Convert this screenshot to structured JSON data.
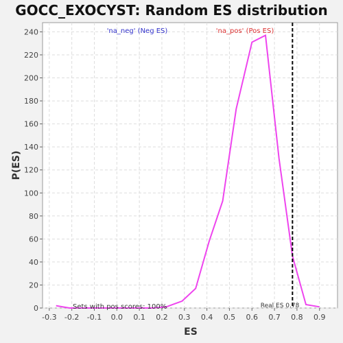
{
  "chart_data": {
    "type": "line",
    "title": "GOCC_EXOCYST: Random ES distribution",
    "xlabel": "ES",
    "ylabel": "P(ES)",
    "xlim": [
      -0.33,
      0.98
    ],
    "ylim": [
      0,
      248
    ],
    "x_ticks": [
      "-0.3",
      "-0.2",
      "-0.1",
      "0.0",
      "0.1",
      "0.2",
      "0.3",
      "0.4",
      "0.5",
      "0.6",
      "0.7",
      "0.8",
      "0.9"
    ],
    "y_ticks": [
      "0",
      "20",
      "40",
      "60",
      "80",
      "100",
      "120",
      "140",
      "160",
      "180",
      "200",
      "220",
      "240"
    ],
    "grid": true,
    "series": [
      {
        "color": "#ee44ee",
        "x": [
          -0.27,
          -0.21,
          -0.15,
          -0.09,
          -0.03,
          0.04,
          0.1,
          0.16,
          0.22,
          0.29,
          0.35,
          0.41,
          0.47,
          0.53,
          0.6,
          0.66,
          0.72,
          0.78,
          0.84,
          0.9
        ],
        "y": [
          2,
          0,
          0,
          0,
          0,
          0,
          0,
          0,
          1,
          6,
          17,
          58,
          93,
          173,
          231,
          237,
          130,
          45,
          3,
          1
        ]
      }
    ],
    "real_es": {
      "x": 0.78,
      "label": "Real ES 0.78",
      "color": "#000000"
    },
    "annotations": {
      "neg": {
        "text": "'na_neg' (Neg ES)",
        "color": "#3333cc"
      },
      "pos": {
        "text": "'na_pos' (Pos ES)",
        "color": "#dd3333"
      },
      "sets": {
        "text": "Sets with pos scores: 100%",
        "color": "#333333"
      }
    }
  }
}
